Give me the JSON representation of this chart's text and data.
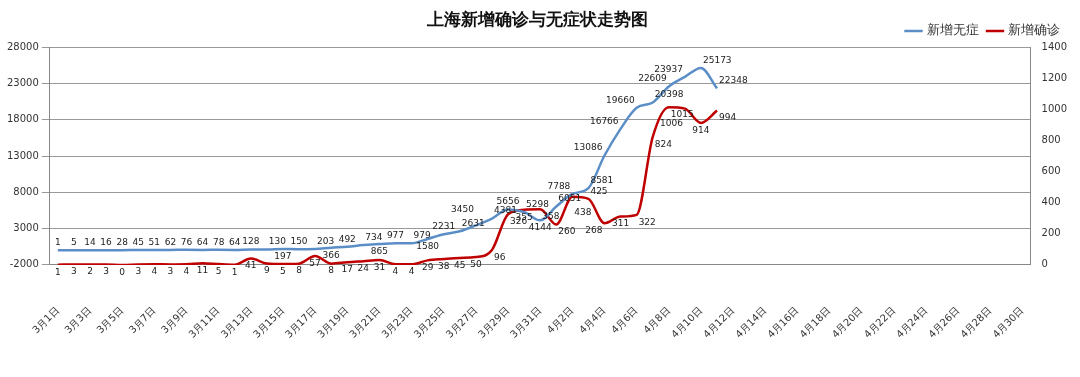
{
  "chart_data": {
    "type": "line",
    "title": "上海新增确诊与无症状走势图",
    "categories": [
      "3月1日",
      null,
      "3月3日",
      null,
      "3月5日",
      null,
      "3月7日",
      null,
      "3月9日",
      null,
      "3月11日",
      null,
      "3月13日",
      null,
      "3月15日",
      null,
      "3月17日",
      null,
      "3月19日",
      null,
      "3月21日",
      null,
      "3月23日",
      null,
      "3月25日",
      null,
      "3月27日",
      null,
      "3月29日",
      null,
      "3月31日",
      null,
      "4月2日",
      null,
      "4月4日",
      null,
      "4月6日",
      null,
      "4月8日",
      null,
      "4月10日",
      null,
      "4月12日",
      null,
      "4月14日",
      null,
      "4月16日",
      null,
      "4月18日",
      null,
      "4月20日",
      null,
      "4月22日",
      null,
      "4月24日",
      null,
      "4月26日",
      null,
      "4月28日",
      null,
      "4月30日"
    ],
    "series": [
      {
        "name": "新增无症",
        "color": "#5b8ec6",
        "values": [
          1,
          5,
          14,
          16,
          28,
          45,
          51,
          62,
          76,
          64,
          78,
          64,
          128,
          130,
          197,
          150,
          203,
          366,
          492,
          734,
          865,
          977,
          979,
          1580,
          2231,
          2631,
          3450,
          4381,
          5656,
          5298,
          4144,
          6051,
          7788,
          8581,
          13086,
          16766,
          19660,
          20398,
          22609,
          23937,
          25173,
          22348,
          null,
          null,
          null,
          null,
          null,
          null,
          null,
          null,
          null,
          null,
          null,
          null,
          null,
          null,
          null,
          null,
          null,
          null,
          null
        ]
      },
      {
        "name": "新增确诊",
        "color": "#c00000",
        "axis": "y2",
        "values": [
          1,
          3,
          2,
          3,
          0,
          3,
          4,
          3,
          4,
          11,
          5,
          1,
          41,
          9,
          5,
          8,
          57,
          8,
          17,
          24,
          31,
          4,
          4,
          29,
          38,
          45,
          50,
          96,
          326,
          355,
          358,
          260,
          438,
          425,
          268,
          311,
          322,
          824,
          1015,
          1006,
          914,
          994,
          null,
          null,
          null,
          null,
          null,
          null,
          null,
          null,
          null,
          null,
          null,
          null,
          null,
          null,
          null,
          null,
          null,
          null,
          null
        ]
      }
    ],
    "ylim": [
      -2000,
      28000
    ],
    "yticks": [
      -2000,
      3000,
      8000,
      13000,
      18000,
      23000,
      28000
    ],
    "y2lim": [
      0,
      1400
    ],
    "y2ticks": [
      0,
      200,
      400,
      600,
      800,
      1000,
      1200,
      1400
    ],
    "grid": "y",
    "legend": "top right",
    "data_labels": true,
    "line_style": "solid"
  }
}
